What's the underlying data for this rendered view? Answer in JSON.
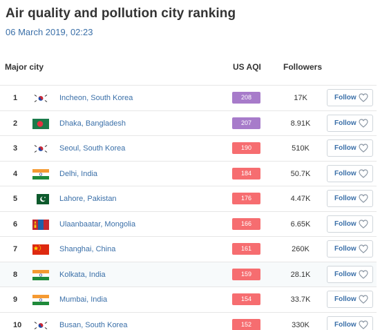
{
  "page": {
    "title": "Air quality and pollution city ranking",
    "date": "06 March 2019, 02:23"
  },
  "table": {
    "headers": {
      "city": "Major city",
      "aqi": "US AQI",
      "followers": "Followers"
    },
    "follow_label": "Follow",
    "rows": [
      {
        "rank": "1",
        "city": "Incheon, South Korea",
        "flag": "south-korea",
        "aqi": "208",
        "aqi_color": "#a77bca",
        "followers": "17K"
      },
      {
        "rank": "2",
        "city": "Dhaka, Bangladesh",
        "flag": "bangladesh",
        "aqi": "207",
        "aqi_color": "#a77bca",
        "followers": "8.91K"
      },
      {
        "rank": "3",
        "city": "Seoul, South Korea",
        "flag": "south-korea",
        "aqi": "190",
        "aqi_color": "#f66d70",
        "followers": "510K"
      },
      {
        "rank": "4",
        "city": "Delhi, India",
        "flag": "india",
        "aqi": "184",
        "aqi_color": "#f66d70",
        "followers": "50.7K"
      },
      {
        "rank": "5",
        "city": "Lahore, Pakistan",
        "flag": "pakistan",
        "aqi": "176",
        "aqi_color": "#f66d70",
        "followers": "4.47K"
      },
      {
        "rank": "6",
        "city": "Ulaanbaatar, Mongolia",
        "flag": "mongolia",
        "aqi": "166",
        "aqi_color": "#f66d70",
        "followers": "6.65K"
      },
      {
        "rank": "7",
        "city": "Shanghai, China",
        "flag": "china",
        "aqi": "161",
        "aqi_color": "#f66d70",
        "followers": "260K"
      },
      {
        "rank": "8",
        "city": "Kolkata, India",
        "flag": "india",
        "aqi": "159",
        "aqi_color": "#f66d70",
        "followers": "28.1K"
      },
      {
        "rank": "9",
        "city": "Mumbai, India",
        "flag": "india",
        "aqi": "154",
        "aqi_color": "#f66d70",
        "followers": "33.7K"
      },
      {
        "rank": "10",
        "city": "Busan, South Korea",
        "flag": "south-korea",
        "aqi": "152",
        "aqi_color": "#f66d70",
        "followers": "330K"
      }
    ]
  }
}
